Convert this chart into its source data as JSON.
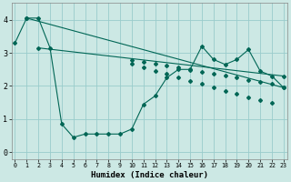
{
  "xlabel": "Humidex (Indice chaleur)",
  "background_color": "#cce8e4",
  "grid_color": "#99cccc",
  "line_color": "#006655",
  "xlim": [
    -0.3,
    23.3
  ],
  "ylim": [
    -0.2,
    4.5
  ],
  "xticks": [
    0,
    1,
    2,
    3,
    4,
    5,
    6,
    7,
    8,
    9,
    10,
    11,
    12,
    13,
    14,
    15,
    16,
    17,
    18,
    19,
    20,
    21,
    22,
    23
  ],
  "yticks": [
    0,
    1,
    2,
    3,
    4
  ],
  "series1_x": [
    0,
    1,
    2,
    3,
    4,
    5,
    6,
    7,
    8,
    9,
    10,
    11,
    12,
    13,
    14,
    15,
    16,
    17,
    18,
    19,
    20,
    21,
    22,
    23
  ],
  "series1_y": [
    3.3,
    4.05,
    4.05,
    3.15,
    0.85,
    0.45,
    0.55,
    0.55,
    0.55,
    0.55,
    0.7,
    1.45,
    1.7,
    2.25,
    2.5,
    2.5,
    3.2,
    2.8,
    2.65,
    2.8,
    3.1,
    2.45,
    2.3,
    1.95
  ],
  "series2_x": [
    1,
    23
  ],
  "series2_y": [
    4.05,
    1.95
  ],
  "series3_x": [
    2,
    23
  ],
  "series3_y": [
    3.15,
    2.3
  ],
  "marker_x2": [
    1,
    10,
    11,
    12,
    13,
    14,
    15,
    16,
    17,
    18,
    19,
    20,
    21,
    22,
    23
  ],
  "marker_y2": [
    4.05,
    2.68,
    2.57,
    2.46,
    2.36,
    2.26,
    2.16,
    2.06,
    1.96,
    1.86,
    1.77,
    1.67,
    1.57,
    1.48,
    1.95
  ],
  "marker_x3": [
    2,
    10,
    11,
    12,
    13,
    14,
    15,
    16,
    17,
    18,
    19,
    20,
    21,
    22,
    23
  ],
  "marker_y3": [
    3.15,
    2.79,
    2.73,
    2.67,
    2.61,
    2.55,
    2.49,
    2.43,
    2.37,
    2.31,
    2.25,
    2.19,
    2.13,
    2.07,
    2.3
  ]
}
